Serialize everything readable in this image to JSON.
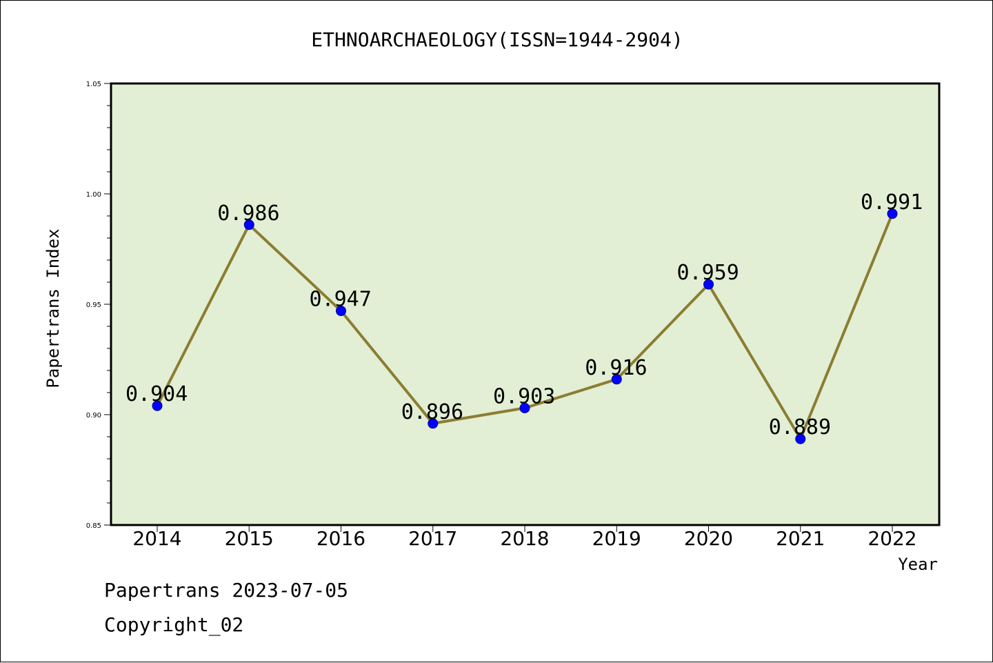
{
  "chart_data": {
    "type": "line",
    "title": "ETHNOARCHAEOLOGY(ISSN=1944-2904)",
    "xlabel": "Year",
    "ylabel": "Papertrans Index",
    "categories": [
      "2014",
      "2015",
      "2016",
      "2017",
      "2018",
      "2019",
      "2020",
      "2021",
      "2022"
    ],
    "values": [
      0.904,
      0.986,
      0.947,
      0.896,
      0.903,
      0.916,
      0.959,
      0.889,
      0.991
    ],
    "data_labels": [
      "0.904",
      "0.986",
      "0.947",
      "0.896",
      "0.903",
      "0.916",
      "0.959",
      "0.889",
      "0.991"
    ],
    "ylim": [
      0.85,
      1.05
    ],
    "yticks": [
      "0.85",
      "0.90",
      "0.95",
      "1.00",
      "1.05"
    ],
    "grid": false,
    "colors": {
      "plot_background": "#e2efd4",
      "line": "#8b7d32",
      "marker": "#0000ff"
    }
  },
  "footer": {
    "line1": "Papertrans 2023-07-05",
    "line2": "Copyright_02"
  }
}
